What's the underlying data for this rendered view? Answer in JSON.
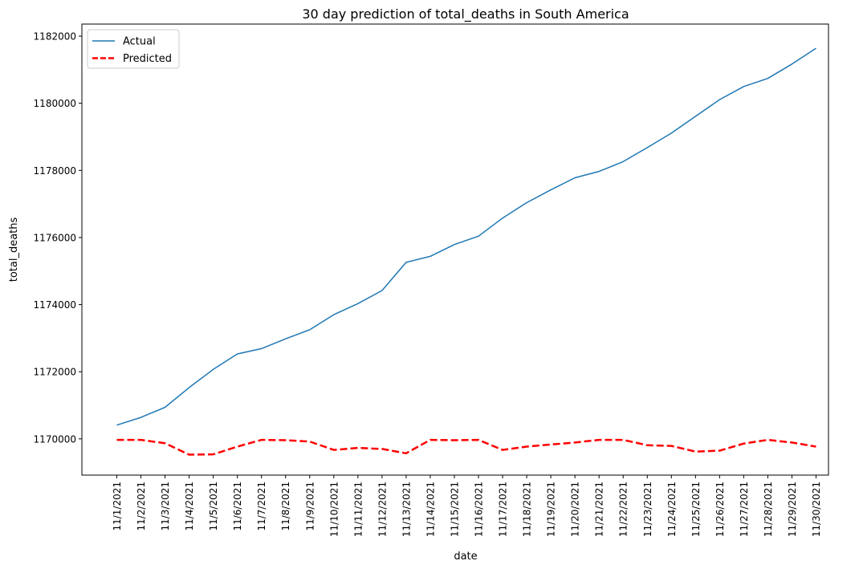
{
  "chart_data": {
    "type": "line",
    "title": "30 day prediction of total_deaths in South America",
    "xlabel": "date",
    "ylabel": "total_deaths",
    "x": [
      "11/1/2021",
      "11/2/2021",
      "11/3/2021",
      "11/4/2021",
      "11/5/2021",
      "11/6/2021",
      "11/7/2021",
      "11/8/2021",
      "11/9/2021",
      "11/10/2021",
      "11/11/2021",
      "11/12/2021",
      "11/13/2021",
      "11/14/2021",
      "11/15/2021",
      "11/16/2021",
      "11/17/2021",
      "11/18/2021",
      "11/19/2021",
      "11/20/2021",
      "11/21/2021",
      "11/22/2021",
      "11/23/2021",
      "11/24/2021",
      "11/25/2021",
      "11/26/2021",
      "11/27/2021",
      "11/28/2021",
      "11/29/2021",
      "11/30/2021"
    ],
    "ylim": [
      1168920,
      1182360
    ],
    "yticks": [
      1170000,
      1172000,
      1174000,
      1176000,
      1178000,
      1180000,
      1182000
    ],
    "grid": false,
    "legend_position": "top-left",
    "series": [
      {
        "name": "Actual",
        "color": "#1f77b4",
        "style": "solid",
        "values": [
          1170410,
          1170640,
          1170940,
          1171530,
          1172070,
          1172530,
          1172690,
          1172980,
          1173250,
          1173700,
          1174030,
          1174420,
          1175260,
          1175440,
          1175790,
          1176040,
          1176580,
          1177040,
          1177420,
          1177780,
          1177970,
          1178260,
          1178680,
          1179110,
          1179610,
          1180110,
          1180500,
          1180740,
          1181170,
          1181640
        ]
      },
      {
        "name": "Predicted",
        "color": "#ff0000",
        "style": "dashed",
        "values": [
          1169970,
          1169970,
          1169870,
          1169530,
          1169540,
          1169770,
          1169970,
          1169960,
          1169920,
          1169670,
          1169730,
          1169700,
          1169570,
          1169970,
          1169960,
          1169970,
          1169670,
          1169770,
          1169830,
          1169890,
          1169970,
          1169970,
          1169810,
          1169790,
          1169620,
          1169650,
          1169860,
          1169970,
          1169890,
          1169770
        ]
      }
    ]
  }
}
